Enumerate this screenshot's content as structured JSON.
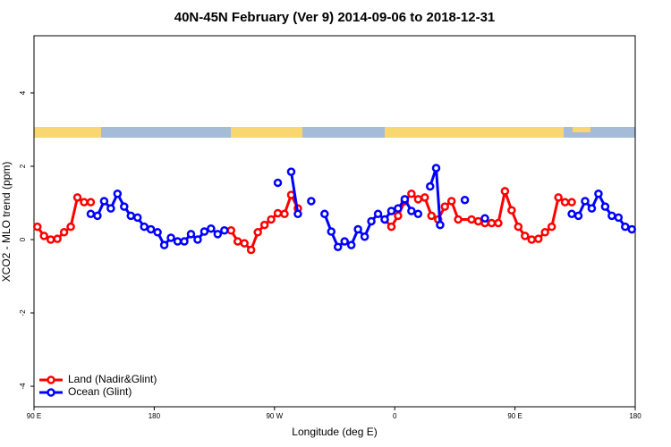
{
  "chart_data": {
    "type": "line",
    "title": "40N-45N February (Ver 9)   2014-09-06 to 2018-12-31",
    "xlabel": "Longitude (deg E)",
    "ylabel": "XCO2 - MLO trend (ppm)",
    "xlim": [
      90,
      540
    ],
    "xticks": [
      {
        "value": 90,
        "label": "90 E"
      },
      180,
      {
        "value": 270,
        "label": "90 W"
      },
      {
        "value": 360,
        "label": "0"
      },
      {
        "value": 450,
        "label": "90 E"
      },
      {
        "value": 540,
        "label": "180"
      }
    ],
    "ylim": [
      -4.56,
      5.56
    ],
    "yticks": [
      -4,
      -2,
      0,
      2,
      4
    ],
    "legend": "bottomleft",
    "series": [
      {
        "name": "Land (Nadir&Glint)",
        "color": "#ff0000",
        "x": [
          92.5,
          97.5,
          102.5,
          107.5,
          112.5,
          117.5,
          122.5,
          127.5,
          132.5,
          null,
          237.5,
          242.5,
          247.5,
          252.5,
          257.5,
          262.5,
          267.5,
          272.5,
          277.5,
          282.5,
          287.5,
          null,
          352.5,
          357.5,
          362.5,
          367.5,
          372.5,
          377.5,
          382.5,
          387.5,
          392.5,
          397.5,
          402.5,
          407.5,
          417.5,
          422.5,
          427.5,
          432.5,
          437.5,
          442.5,
          447.5,
          452.5,
          457.5,
          462.5,
          467.5,
          472.5,
          477.5,
          482.5,
          487.5,
          492.5
        ],
        "values": [
          0.35,
          0.1,
          0,
          0.02,
          0.2,
          0.35,
          1.15,
          1.02,
          1.02,
          null,
          0.25,
          -0.05,
          -0.1,
          -0.28,
          0.2,
          0.4,
          0.55,
          0.72,
          0.7,
          1.22,
          0.85,
          null,
          0.55,
          0.35,
          0.65,
          1.05,
          1.25,
          1.1,
          1.15,
          0.65,
          0.55,
          0.9,
          1.05,
          0.55,
          0.55,
          0.5,
          0.45,
          0.45,
          0.45,
          1.32,
          0.8,
          0.35,
          0.1,
          0,
          0.02,
          0.2,
          0.35,
          1.15,
          1.02,
          1.02
        ]
      },
      {
        "name": "Ocean (Glint)",
        "color": "#0000ff",
        "x": [
          132.5,
          137.5,
          142.5,
          147.5,
          152.5,
          157.5,
          162.5,
          167.5,
          172.5,
          177.5,
          182.5,
          187.5,
          192.5,
          197.5,
          202.5,
          207.5,
          212.5,
          217.5,
          222.5,
          227.5,
          232.5,
          null,
          272.5,
          null,
          282.5,
          287.5,
          null,
          297.5,
          null,
          307.5,
          312.5,
          317.5,
          322.5,
          327.5,
          332.5,
          337.5,
          342.5,
          347.5,
          352.5,
          357.5,
          362.5,
          367.5,
          372.5,
          377.5,
          null,
          386.5,
          391,
          394,
          null,
          412.5,
          null,
          427.5,
          null,
          492.5,
          497.5,
          502.5,
          507.5,
          512.5,
          517.5,
          522.5,
          527.5,
          532.5,
          537.5
        ],
        "values": [
          0.7,
          0.65,
          1.05,
          0.85,
          1.25,
          0.9,
          0.65,
          0.6,
          0.35,
          0.28,
          0.2,
          -0.15,
          0.05,
          -0.05,
          -0.05,
          0.15,
          0,
          0.22,
          0.3,
          0.15,
          0.25,
          null,
          1.55,
          null,
          1.85,
          0.7,
          null,
          1.05,
          null,
          0.7,
          0.22,
          -0.2,
          -0.05,
          -0.15,
          0.28,
          0.08,
          0.5,
          0.7,
          0.55,
          0.78,
          0.85,
          1.1,
          0.78,
          0.7,
          null,
          1.45,
          1.95,
          0.4,
          null,
          1.08,
          null,
          0.58,
          null,
          0.7,
          0.65,
          1.05,
          0.85,
          1.25,
          0.9,
          0.65,
          0.6,
          0.35,
          0.28
        ]
      }
    ]
  }
}
